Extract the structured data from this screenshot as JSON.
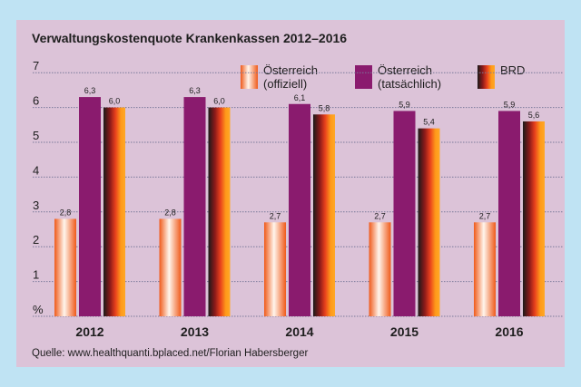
{
  "title": "Verwaltungskostenquote Krankenkassen 2012–2016",
  "source": "Quelle: www.healthquanti.bplaced.net/Florian Habersberger",
  "legend": [
    {
      "line1": "Österreich",
      "line2": "(offiziell)",
      "style": "orange"
    },
    {
      "line1": "Österreich",
      "line2": "(tatsächlich)",
      "style": "purple"
    },
    {
      "line1": "BRD",
      "line2": "",
      "style": "brd"
    }
  ],
  "colors": {
    "background": "#bfe3f3",
    "panel": "#dcc3d8",
    "purple": "#8a1b6e",
    "orange": "#ef5a1a",
    "grid": "#7a7a9a"
  },
  "chart_data": {
    "type": "bar",
    "title": "Verwaltungskostenquote Krankenkassen 2012–2016",
    "categories": [
      "2012",
      "2013",
      "2014",
      "2015",
      "2016"
    ],
    "series": [
      {
        "name": "Österreich (offiziell)",
        "values": [
          2.8,
          2.8,
          2.7,
          2.7,
          2.7
        ],
        "labels": [
          "2,8",
          "2,8",
          "2,7",
          "2,7",
          "2,7"
        ]
      },
      {
        "name": "Österreich (tatsächlich)",
        "values": [
          6.3,
          6.3,
          6.1,
          5.9,
          5.9
        ],
        "labels": [
          "6,3",
          "6,3",
          "6,1",
          "5,9",
          "5,9"
        ]
      },
      {
        "name": "BRD",
        "values": [
          6.0,
          6.0,
          5.8,
          5.4,
          5.6
        ],
        "labels": [
          "6,0",
          "6,0",
          "5,8",
          "5,4",
          "5,6"
        ]
      }
    ],
    "yticks": [
      "%",
      "1",
      "2",
      "3",
      "4",
      "5",
      "6",
      "7"
    ],
    "ylim": [
      0,
      7
    ],
    "ylabel": "%",
    "xlabel": "",
    "grid": true,
    "legend_position": "top-right"
  }
}
